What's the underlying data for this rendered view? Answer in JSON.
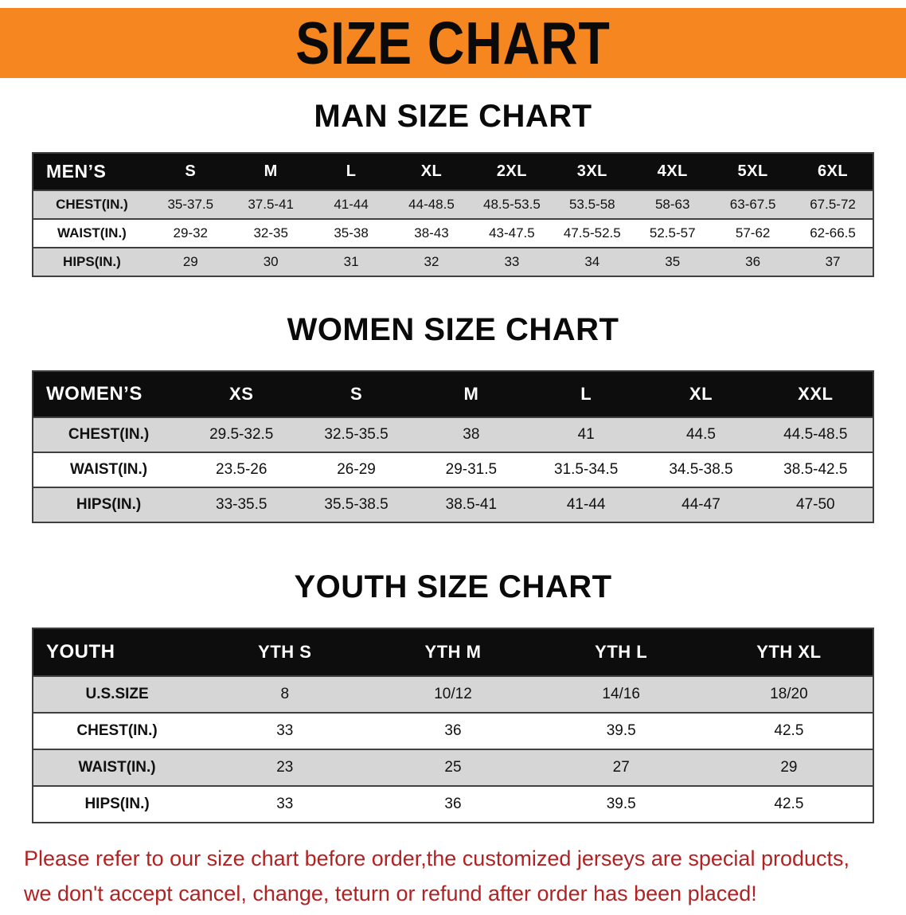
{
  "colors": {
    "banner-bg": "#f6861f",
    "header-bg": "#0d0d0d",
    "row-alt": "#d6d6d6",
    "line": "#3f3f3f",
    "disclaimer": "#b22222"
  },
  "banner": {
    "title": "SIZE CHART"
  },
  "sections": [
    {
      "heading": "MAN SIZE CHART",
      "table": {
        "header": [
          "MEN’S",
          "S",
          "M",
          "L",
          "XL",
          "2XL",
          "3XL",
          "4XL",
          "5XL",
          "6XL"
        ],
        "rows": [
          [
            "CHEST(IN.)",
            "35-37.5",
            "37.5-41",
            "41-44",
            "44-48.5",
            "48.5-53.5",
            "53.5-58",
            "58-63",
            "63-67.5",
            "67.5-72"
          ],
          [
            "WAIST(IN.)",
            "29-32",
            "32-35",
            "35-38",
            "38-43",
            "43-47.5",
            "47.5-52.5",
            "52.5-57",
            "57-62",
            "62-66.5"
          ],
          [
            "HIPS(IN.)",
            "29",
            "30",
            "31",
            "32",
            "33",
            "34",
            "35",
            "36",
            "37"
          ]
        ]
      }
    },
    {
      "heading": "WOMEN SIZE CHART",
      "table": {
        "header": [
          "WOMEN’S",
          "XS",
          "S",
          "M",
          "L",
          "XL",
          "XXL"
        ],
        "rows": [
          [
            "CHEST(IN.)",
            "29.5-32.5",
            "32.5-35.5",
            "38",
            "41",
            "44.5",
            "44.5-48.5"
          ],
          [
            "WAIST(IN.)",
            "23.5-26",
            "26-29",
            "29-31.5",
            "31.5-34.5",
            "34.5-38.5",
            "38.5-42.5"
          ],
          [
            "HIPS(IN.)",
            "33-35.5",
            "35.5-38.5",
            "38.5-41",
            "41-44",
            "44-47",
            "47-50"
          ]
        ]
      }
    },
    {
      "heading": "YOUTH SIZE CHART",
      "table": {
        "header": [
          "YOUTH",
          "YTH S",
          "YTH M",
          "YTH L",
          "YTH XL"
        ],
        "rows": [
          [
            "U.S.SIZE",
            "8",
            "10/12",
            "14/16",
            "18/20"
          ],
          [
            "CHEST(IN.)",
            "33",
            "36",
            "39.5",
            "42.5"
          ],
          [
            "WAIST(IN.)",
            "23",
            "25",
            "27",
            "29"
          ],
          [
            "HIPS(IN.)",
            "33",
            "36",
            "39.5",
            "42.5"
          ]
        ]
      }
    }
  ],
  "disclaimer": {
    "line1": "Please refer to our size chart before order,the customized jerseys are special products,",
    "line2": "we don't accept cancel, change, teturn or refund after order has been placed!"
  }
}
